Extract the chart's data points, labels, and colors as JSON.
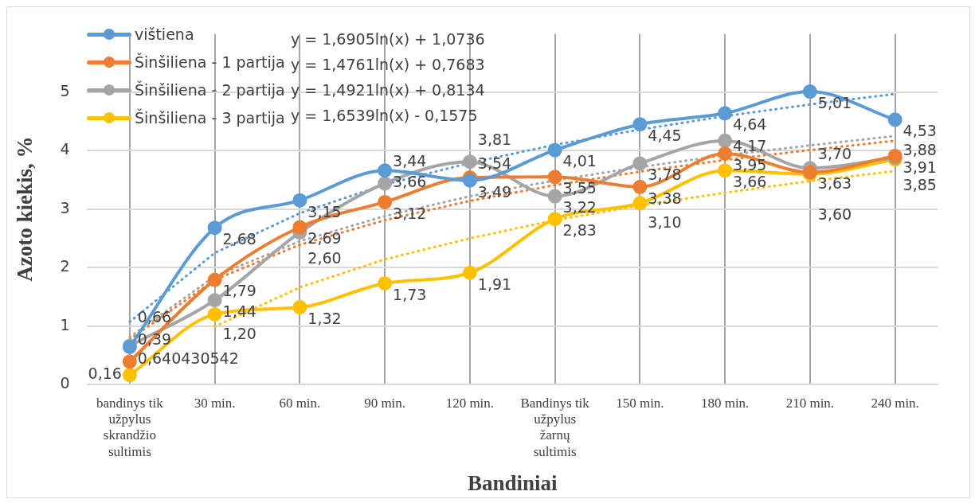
{
  "chart_data": {
    "type": "line",
    "xlabel": "Bandiniai",
    "ylabel": "Azoto kiekis, %",
    "categories": [
      "bandinys tik užpylus skrandžio sultimis",
      "30 min.",
      "60 min.",
      "90 min.",
      "120 min.",
      "Bandinys tik užpylus žarnų sultimis",
      "150 min.",
      "180 min.",
      "210 min.",
      "240 min."
    ],
    "ylim": [
      0,
      6
    ],
    "yticks": [
      0,
      1,
      2,
      3,
      4,
      5
    ],
    "grid": true,
    "legend": "top left",
    "marker": "circle",
    "line_style": "solid",
    "series": [
      {
        "name": "vištiena",
        "color": "#5b9bd5",
        "values": [
          0.640430542,
          2.68,
          3.15,
          3.66,
          3.49,
          4.01,
          4.45,
          4.64,
          5.01,
          4.53
        ],
        "value_labels": [
          "0,640430542",
          "2,68",
          "3,15",
          "3,66",
          "3,49",
          "4,01",
          "4,45",
          "4,64",
          "5,01",
          "4,53"
        ]
      },
      {
        "name": "Šinšiliena - 1 partija",
        "color": "#ed7d31",
        "values": [
          0.39,
          1.79,
          2.69,
          3.12,
          3.54,
          3.55,
          3.38,
          3.95,
          3.63,
          3.91
        ],
        "value_labels": [
          "0,39",
          "1,79",
          "2,69",
          "3,12",
          "3,54",
          "3,55",
          "3,38",
          "3,95",
          "3,63",
          "3,91"
        ]
      },
      {
        "name": "Šinšiliena - 2 partija",
        "color": "#a5a5a5",
        "values": [
          0.66,
          1.44,
          2.6,
          3.44,
          3.81,
          3.22,
          3.78,
          4.17,
          3.7,
          3.88
        ],
        "value_labels": [
          "0,66",
          "1,44",
          "2,60",
          "3,44",
          "3,81",
          "3,22",
          "3,78",
          "4,17",
          "3,70",
          "3,88"
        ]
      },
      {
        "name": "Šinšiliena - 3 partija",
        "color": "#ffc000",
        "values": [
          0.16,
          1.2,
          1.32,
          1.73,
          1.91,
          2.83,
          3.1,
          3.66,
          3.6,
          3.85
        ],
        "value_labels": [
          "0,16",
          "1,20",
          "1,32",
          "1,73",
          "1,91",
          "2,83",
          "3,10",
          "3,66",
          "3,60",
          "3,85"
        ]
      },
      {
        "type": "line",
        "color": "#5b9bd5",
        "line_style": "dotted",
        "marker": "none",
        "values": [
          1.07,
          2.25,
          2.93,
          3.42,
          3.79,
          4.1,
          4.36,
          4.59,
          4.79,
          4.97
        ]
      },
      {
        "type": "line",
        "color": "#ed7d31",
        "line_style": "dotted",
        "marker": "none",
        "values": [
          0.77,
          1.79,
          2.39,
          2.81,
          3.14,
          3.41,
          3.64,
          3.84,
          4.01,
          4.17
        ]
      },
      {
        "type": "line",
        "color": "#a5a5a5",
        "line_style": "dotted",
        "marker": "none",
        "values": [
          0.81,
          1.85,
          2.45,
          2.88,
          3.22,
          3.49,
          3.72,
          3.92,
          4.09,
          4.25
        ]
      },
      {
        "type": "line",
        "color": "#ffc000",
        "line_style": "dotted",
        "marker": "none",
        "values": [
          null,
          0.99,
          1.66,
          2.14,
          2.5,
          2.81,
          3.06,
          3.28,
          3.48,
          3.65
        ]
      }
    ],
    "annotations": [
      "y = 1,6905ln(x) + 1,0736",
      "y = 1,4761ln(x) + 0,7683",
      "y = 1,4921ln(x) + 0,8134",
      "y = 1,6539ln(x) - 0,1575"
    ]
  }
}
